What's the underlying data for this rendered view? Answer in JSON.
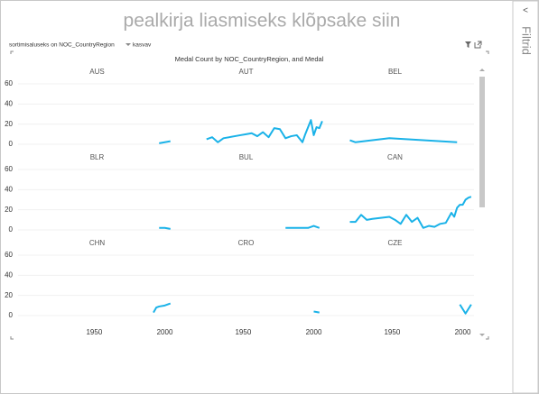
{
  "header": {
    "title": "pealkirja liasmiseks klõpsake siin",
    "sort_label": "sortimisaluseks on NOC_CountryRegion",
    "sort_order": "kasvav",
    "filters": "Filtrid"
  },
  "chart_data": {
    "type": "line",
    "title": "Medal Count by NOC_CountryRegion, and Medal",
    "color": "#1ab2e8",
    "grid": true,
    "xlim": [
      1896,
      2008
    ],
    "xticks": [
      1950,
      2000
    ],
    "ylim": [
      0,
      60
    ],
    "yticks": [
      0,
      20,
      40,
      60
    ],
    "series": [
      {
        "name": "AUS",
        "x": [
          1996,
          2000,
          2004
        ],
        "values": [
          1,
          2,
          3
        ]
      },
      {
        "name": "AUT",
        "x": [
          1924,
          1928,
          1932,
          1936,
          1948,
          1952,
          1956,
          1960,
          1964,
          1968,
          1972,
          1976,
          1980,
          1984,
          1988,
          1992,
          1994,
          1998,
          2000,
          2002,
          2004,
          2006
        ],
        "values": [
          5,
          7,
          2,
          6,
          9,
          10,
          11,
          8,
          12,
          7,
          16,
          15,
          6,
          8,
          9,
          2,
          10,
          24,
          9,
          17,
          16,
          23
        ]
      },
      {
        "name": "BEL",
        "x": [
          1920,
          1924,
          1948,
          1996
        ],
        "values": [
          4,
          2,
          6,
          2
        ]
      },
      {
        "name": "BLR",
        "x": [
          1996,
          2000,
          2004
        ],
        "values": [
          2,
          2,
          1
        ]
      },
      {
        "name": "BUL",
        "x": [
          1980,
          1988,
          1992,
          1996,
          2000,
          2004
        ],
        "values": [
          2,
          2,
          2,
          2,
          4,
          2
        ]
      },
      {
        "name": "CAN",
        "x": [
          1920,
          1924,
          1928,
          1932,
          1936,
          1948,
          1952,
          1956,
          1960,
          1964,
          1968,
          1972,
          1976,
          1980,
          1984,
          1988,
          1992,
          1994,
          1996,
          1998,
          2000,
          2002,
          2004,
          2006
        ],
        "values": [
          8,
          8,
          15,
          10,
          11,
          13,
          10,
          6,
          15,
          8,
          12,
          2,
          4,
          3,
          6,
          7,
          17,
          13,
          22,
          25,
          25,
          30,
          32,
          33
        ]
      },
      {
        "name": "CHN",
        "x": [
          1992,
          1994,
          1996,
          2000,
          2004
        ],
        "values": [
          3,
          8,
          9,
          10,
          12
        ]
      },
      {
        "name": "CRO",
        "x": [
          2000,
          2004
        ],
        "values": [
          4,
          3
        ]
      },
      {
        "name": "CZE",
        "x": [
          1998,
          2002,
          2006
        ],
        "values": [
          11,
          2,
          11
        ]
      }
    ]
  }
}
